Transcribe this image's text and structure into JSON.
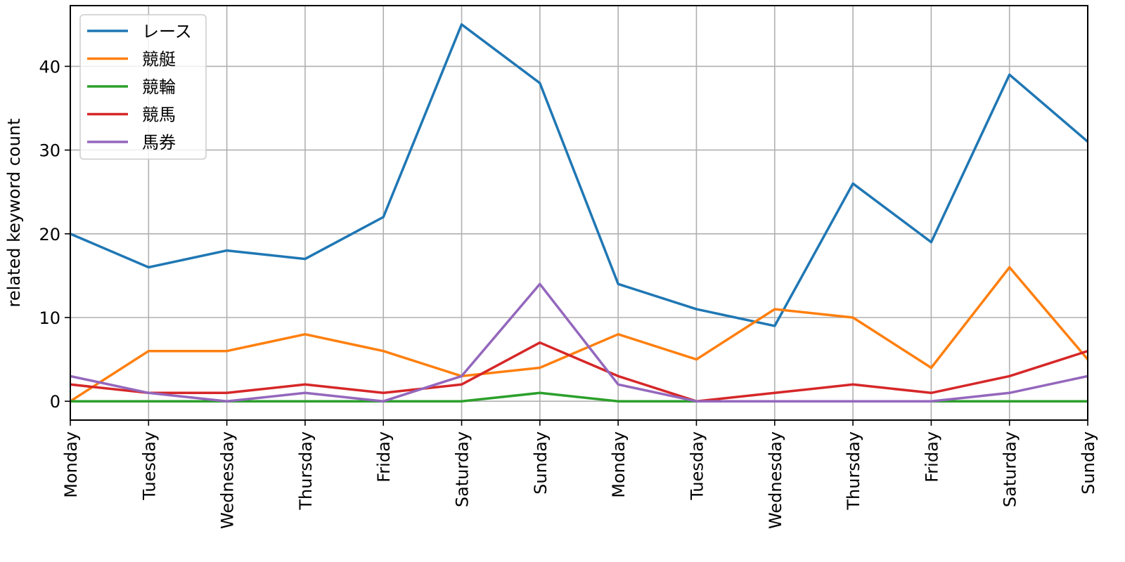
{
  "chart_data": {
    "type": "line",
    "title": "",
    "xlabel": "",
    "ylabel": "related keyword count",
    "categories": [
      "Monday",
      "Tuesday",
      "Wednesday",
      "Thursday",
      "Friday",
      "Saturday",
      "Sunday",
      "Monday",
      "Tuesday",
      "Wednesday",
      "Thursday",
      "Friday",
      "Saturday",
      "Sunday"
    ],
    "ylim": [
      -2.25,
      47.25
    ],
    "yticks": [
      0,
      10,
      20,
      30,
      40
    ],
    "grid": true,
    "legend_position": "top-left",
    "series": [
      {
        "name": "レース",
        "color": "#1f77b4",
        "values": [
          20,
          16,
          18,
          17,
          22,
          45,
          38,
          14,
          11,
          9,
          26,
          19,
          39,
          31
        ]
      },
      {
        "name": "競艇",
        "color": "#ff7f0e",
        "values": [
          0,
          6,
          6,
          8,
          6,
          3,
          4,
          8,
          5,
          11,
          10,
          4,
          16,
          5
        ]
      },
      {
        "name": "競輪",
        "color": "#2ca02c",
        "values": [
          0,
          0,
          0,
          0,
          0,
          0,
          1,
          0,
          0,
          0,
          0,
          0,
          0,
          0
        ]
      },
      {
        "name": "競馬",
        "color": "#d62728",
        "values": [
          2,
          1,
          1,
          2,
          1,
          2,
          7,
          3,
          0,
          1,
          2,
          1,
          3,
          6
        ]
      },
      {
        "name": "馬券",
        "color": "#9467bd",
        "values": [
          3,
          1,
          0,
          1,
          0,
          3,
          14,
          2,
          0,
          0,
          0,
          0,
          1,
          3
        ]
      }
    ]
  }
}
